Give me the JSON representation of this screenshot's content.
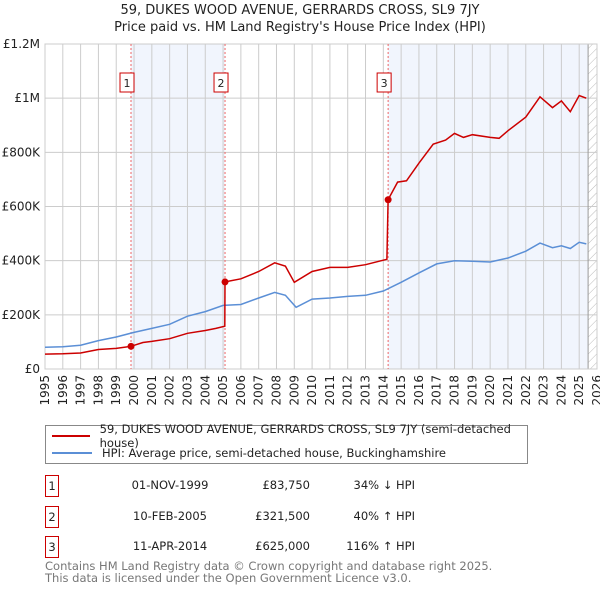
{
  "title": "59, DUKES WOOD AVENUE, GERRARDS CROSS, SL9 7JY",
  "subtitle": "Price paid vs. HM Land Registry's House Price Index (HPI)",
  "chart_data": {
    "type": "line",
    "xlim": [
      1995,
      2026
    ],
    "ylim": [
      0,
      1200000
    ],
    "yticks": [
      0,
      200000,
      400000,
      600000,
      800000,
      1000000,
      1200000
    ],
    "ytick_labels": [
      "£0",
      "£200K",
      "£400K",
      "£600K",
      "£800K",
      "£1M",
      "£1.2M"
    ],
    "xtick_labels": [
      "1995",
      "1996",
      "1997",
      "1998",
      "1999",
      "2000",
      "2001",
      "2002",
      "2003",
      "2004",
      "2005",
      "2006",
      "2007",
      "2008",
      "2009",
      "2010",
      "2011",
      "2012",
      "2013",
      "2014",
      "2015",
      "2016",
      "2017",
      "2018",
      "2019",
      "2020",
      "2021",
      "2022",
      "2023",
      "2024",
      "2025",
      "2026"
    ],
    "grid": true,
    "shaded_ranges": [
      [
        1999.83,
        2005.11
      ],
      [
        2014.27,
        2025.5
      ]
    ],
    "hatched_after": 2025.5,
    "series": [
      {
        "name": "59, DUKES WOOD AVENUE, GERRARDS CROSS, SL9 7JY (semi-detached house)",
        "color": "#cc0000",
        "x": [
          1995,
          1996,
          1997,
          1998,
          1999,
          1999.83,
          2000.5,
          2001,
          2002,
          2003,
          2004,
          2004.6,
          2005.1,
          2005.11,
          2006,
          2007,
          2007.9,
          2008.5,
          2009,
          2010,
          2011,
          2012,
          2013,
          2014.2,
          2014.27,
          2014.8,
          2015.3,
          2016,
          2016.8,
          2017.5,
          2018,
          2018.5,
          2019,
          2020,
          2020.5,
          2021,
          2022,
          2022.8,
          2023.5,
          2024,
          2024.5,
          2025,
          2025.4
        ],
        "y": [
          55000,
          56000,
          59000,
          72000,
          76000,
          83750,
          98000,
          102000,
          112000,
          132000,
          142000,
          150000,
          158000,
          321500,
          333000,
          360000,
          392000,
          380000,
          320000,
          360000,
          375000,
          375000,
          385000,
          405000,
          625000,
          690000,
          695000,
          760000,
          830000,
          845000,
          870000,
          855000,
          865000,
          855000,
          852000,
          880000,
          930000,
          1005000,
          965000,
          990000,
          950000,
          1010000,
          1000000
        ]
      },
      {
        "name": "HPI: Average price, semi-detached house, Buckinghamshire",
        "color": "#5b8fd6",
        "x": [
          1995,
          1996,
          1997,
          1998,
          1999,
          2000,
          2001,
          2002,
          2003,
          2004,
          2005,
          2006,
          2007,
          2007.9,
          2008.5,
          2009.1,
          2010,
          2011,
          2012,
          2013,
          2014,
          2015,
          2016,
          2017,
          2018,
          2019,
          2020,
          2021,
          2022,
          2022.8,
          2023.5,
          2024,
          2024.5,
          2025,
          2025.4
        ],
        "y": [
          80000,
          82000,
          88000,
          105000,
          118000,
          135000,
          150000,
          165000,
          195000,
          212000,
          235000,
          238000,
          262000,
          283000,
          272000,
          228000,
          258000,
          262000,
          268000,
          272000,
          288000,
          320000,
          355000,
          388000,
          400000,
          398000,
          395000,
          410000,
          435000,
          465000,
          448000,
          455000,
          445000,
          468000,
          462000
        ]
      }
    ],
    "sales": [
      {
        "label": "1",
        "date": "01-NOV-1999",
        "x": 1999.83,
        "price": "£83,750",
        "value": 83750,
        "hpi": "34% ↓ HPI"
      },
      {
        "label": "2",
        "date": "10-FEB-2005",
        "x": 2005.11,
        "price": "£321,500",
        "value": 321500,
        "hpi": "40% ↑ HPI"
      },
      {
        "label": "3",
        "date": "11-APR-2014",
        "x": 2014.27,
        "price": "£625,000",
        "value": 625000,
        "hpi": "116% ↑ HPI"
      }
    ]
  },
  "legend": {
    "red": "59, DUKES WOOD AVENUE, GERRARDS CROSS, SL9 7JY (semi-detached house)",
    "blue": "HPI: Average price, semi-detached house, Buckinghamshire"
  },
  "footer": {
    "line1": "Contains HM Land Registry data © Crown copyright and database right 2025.",
    "line2": "This data is licensed under the Open Government Licence v3.0."
  }
}
